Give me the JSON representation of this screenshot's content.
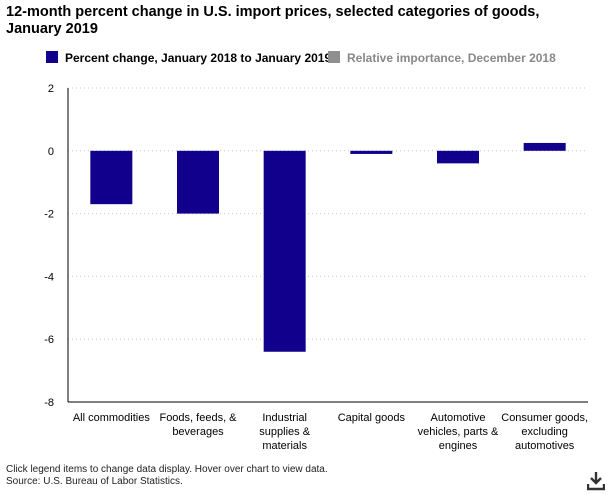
{
  "chart_title": "12-month percent change in U.S. import prices, selected categories of goods, January 2019",
  "legend": {
    "items": [
      {
        "label": "Percent change, January 2018 to January 2019",
        "color": "#10008c",
        "active": true
      },
      {
        "label": "Relative importance, December 2018",
        "color": "#8f8f8f",
        "active": false
      }
    ]
  },
  "chart_data": {
    "type": "bar",
    "title": "12-month percent change in U.S. import prices, selected categories of goods, January 2019",
    "categories": [
      [
        "All commodities"
      ],
      [
        "Foods, feeds, &",
        "beverages"
      ],
      [
        "Industrial",
        "supplies &",
        "materials"
      ],
      [
        "Capital goods"
      ],
      [
        "Automotive",
        "vehicles, parts &",
        "engines"
      ],
      [
        "Consumer goods,",
        "excluding",
        "automotives"
      ]
    ],
    "series": [
      {
        "name": "Percent change, January 2018 to January 2019",
        "values": [
          -1.7,
          -2.0,
          -6.4,
          -0.1,
          -0.4,
          0.25
        ]
      }
    ],
    "ylim": [
      -8,
      2
    ],
    "yticks": [
      2,
      0,
      -2,
      -4,
      -6,
      -8
    ],
    "xlabel": "",
    "ylabel": "",
    "grid": true,
    "bar_color": "#10008c"
  },
  "footer": {
    "note": "Click legend items to change data display. Hover over chart to view data.",
    "source": "Source: U.S. Bureau of Labor Statistics."
  },
  "icons": {
    "download": "download-icon"
  }
}
